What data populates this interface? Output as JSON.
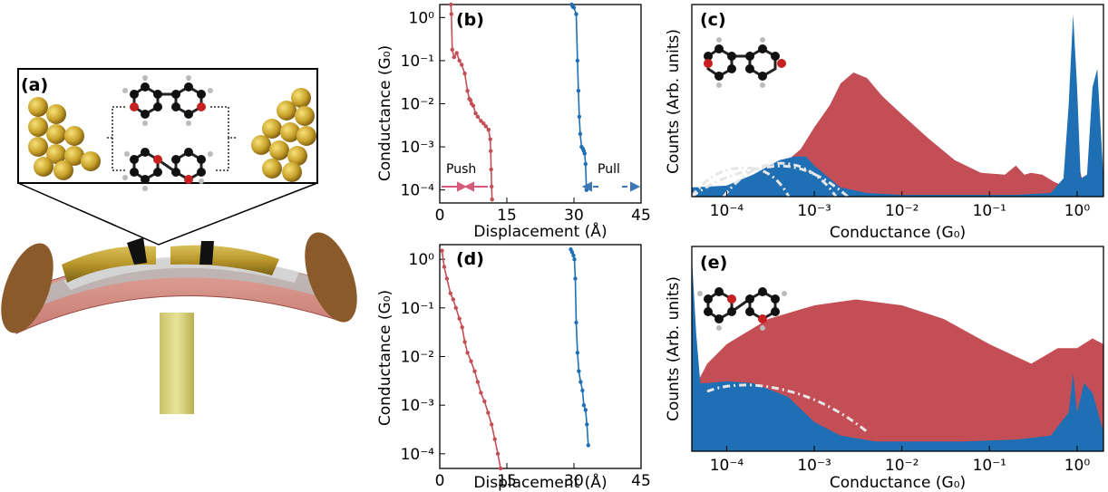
{
  "panels": {
    "a": {
      "label": "(a)"
    },
    "b": {
      "label": "(b)"
    },
    "c": {
      "label": "(c)"
    },
    "d": {
      "label": "(d)"
    },
    "e": {
      "label": "(e)"
    }
  },
  "annotations": {
    "push": "Push",
    "pull": "Pull"
  },
  "colors": {
    "push": "#c44e55",
    "pull": "#1f6fb5",
    "fit": "#e6e6e6"
  },
  "axis_text": {
    "traces_ylabel": "Conductance (G₀)",
    "traces_xlabel": "Displacement (Å)",
    "hist_ylabel": "Counts (Arb. units)",
    "hist_xlabel": "Conductance (G₀)"
  },
  "chart_data": [
    {
      "panel": "b",
      "type": "line",
      "xlabel": "Displacement (Å)",
      "ylabel": "Conductance (G₀)",
      "xlim": [
        0,
        45
      ],
      "ylim": [
        5e-05,
        2
      ],
      "yscale": "log",
      "xticks": [
        "0",
        "15",
        "30",
        "45"
      ],
      "yticks": [
        "10⁰",
        "10⁻¹",
        "10⁻²",
        "10⁻³",
        "10⁻⁴"
      ],
      "series": [
        {
          "name": "Push",
          "color": "#c44e55",
          "x": [
            2.5,
            2.6,
            2.8,
            3.2,
            3.8,
            4.4,
            4.9,
            5.6,
            6.2,
            6.6,
            6.9,
            7.1,
            7.5,
            8.0,
            8.5,
            9.2,
            9.8,
            10.3,
            10.9,
            11.3,
            11.4,
            11.5,
            11.6,
            11.7
          ],
          "y": [
            2,
            1.2,
            0.18,
            0.12,
            0.15,
            0.1,
            0.08,
            0.05,
            0.02,
            0.013,
            0.012,
            0.01,
            0.009,
            0.006,
            0.005,
            0.004,
            0.0035,
            0.003,
            0.0025,
            0.0015,
            0.0008,
            0.0003,
            0.00012,
            6e-05
          ]
        },
        {
          "name": "Pull",
          "color": "#1f6fb5",
          "x": [
            29.5,
            29.7,
            30.0,
            30.5,
            30.8,
            31.0,
            31.2,
            31.4,
            31.7,
            32.0,
            32.2,
            32.4,
            32.6,
            32.8
          ],
          "y": [
            2,
            1.8,
            1.7,
            1.2,
            0.1,
            0.02,
            0.005,
            0.002,
            0.001,
            0.0009,
            0.0008,
            0.0007,
            0.0004,
            0.0001
          ]
        }
      ]
    },
    {
      "panel": "d",
      "type": "line",
      "xlabel": "Displacement (Å)",
      "ylabel": "Conductance (G₀)",
      "xlim": [
        0,
        45
      ],
      "ylim": [
        5e-05,
        2
      ],
      "yscale": "log",
      "xticks": [
        "0",
        "15",
        "30",
        "45"
      ],
      "yticks": [
        "10⁰",
        "10⁻¹",
        "10⁻²",
        "10⁻³",
        "10⁻⁴"
      ],
      "series": [
        {
          "name": "Push",
          "color": "#c44e55",
          "x": [
            0.5,
            1.0,
            1.6,
            2.4,
            3.0,
            3.6,
            4.4,
            5.0,
            5.6,
            6.2,
            7.0,
            7.8,
            8.5,
            9.2,
            10.0,
            10.8,
            11.6,
            12.3,
            13.0,
            13.6
          ],
          "y": [
            1.5,
            0.7,
            0.4,
            0.2,
            0.15,
            0.1,
            0.06,
            0.04,
            0.02,
            0.012,
            0.008,
            0.005,
            0.003,
            0.0018,
            0.0012,
            0.0007,
            0.0004,
            0.0002,
            0.0001,
            5e-05
          ]
        },
        {
          "name": "Pull",
          "color": "#1f6fb5",
          "x": [
            29.3,
            29.6,
            29.9,
            30.1,
            30.3,
            30.5,
            30.8,
            31.1,
            31.5,
            31.9,
            32.2,
            32.6,
            32.9,
            33.2
          ],
          "y": [
            1.6,
            1.4,
            1.2,
            1.0,
            0.4,
            0.05,
            0.012,
            0.005,
            0.003,
            0.002,
            0.001,
            0.0008,
            0.0004,
            0.00015
          ]
        }
      ]
    },
    {
      "panel": "c",
      "type": "area",
      "xlabel": "Conductance (G₀)",
      "ylabel": "Counts (Arb. units)",
      "xscale": "log",
      "xlim": [
        4e-05,
        2
      ],
      "xticks": [
        "10⁻⁴",
        "10⁻³",
        "10⁻²",
        "10⁻¹",
        "10⁰"
      ],
      "series": [
        {
          "name": "Push",
          "color": "#c44e55",
          "x": [
            4e-05,
            0.0001,
            0.0002,
            0.0004,
            0.0007,
            0.001,
            0.0015,
            0.002,
            0.0028,
            0.004,
            0.006,
            0.01,
            0.02,
            0.04,
            0.08,
            0.15,
            0.2,
            0.25,
            0.3,
            0.4,
            0.55,
            0.7,
            0.9,
            1.2,
            1.5,
            2
          ],
          "y": [
            0.04,
            0.06,
            0.1,
            0.16,
            0.26,
            0.38,
            0.5,
            0.62,
            0.68,
            0.65,
            0.55,
            0.45,
            0.32,
            0.2,
            0.13,
            0.12,
            0.17,
            0.12,
            0.13,
            0.12,
            0.08,
            0.06,
            0.3,
            0.05,
            0.15,
            0.05
          ]
        },
        {
          "name": "Pull",
          "color": "#1f6fb5",
          "x": [
            4e-05,
            0.0001,
            0.0002,
            0.0004,
            0.0006,
            0.0008,
            0.001,
            0.0015,
            0.002,
            0.004,
            0.01,
            0.05,
            0.2,
            0.5,
            0.7,
            0.8,
            0.9,
            1.0,
            1.1,
            1.3,
            1.5,
            1.7,
            2
          ],
          "y": [
            0.05,
            0.06,
            0.12,
            0.2,
            0.22,
            0.22,
            0.17,
            0.1,
            0.05,
            0.02,
            0.01,
            0.01,
            0.01,
            0.02,
            0.1,
            0.5,
            1.0,
            0.6,
            0.1,
            0.12,
            0.6,
            0.7,
            0.1
          ]
        }
      ]
    },
    {
      "panel": "e",
      "type": "area",
      "xlabel": "Conductance (G₀)",
      "ylabel": "Counts (Arb. units)",
      "xscale": "log",
      "xlim": [
        4e-05,
        2
      ],
      "xticks": [
        "10⁻⁴",
        "10⁻³",
        "10⁻²",
        "10⁻¹",
        "10⁰"
      ],
      "series": [
        {
          "name": "Push",
          "color": "#c44e55",
          "x": [
            4e-05,
            6e-05,
            0.0001,
            0.0003,
            0.001,
            0.003,
            0.01,
            0.03,
            0.1,
            0.3,
            0.6,
            1.0,
            1.5,
            2
          ],
          "y": [
            0.3,
            0.45,
            0.55,
            0.68,
            0.75,
            0.78,
            0.75,
            0.68,
            0.55,
            0.45,
            0.53,
            0.53,
            0.58,
            0.55
          ]
        },
        {
          "name": "Pull",
          "color": "#1f6fb5",
          "x": [
            4e-05,
            4.5e-05,
            5e-05,
            6e-05,
            0.0001,
            0.0002,
            0.0005,
            0.001,
            0.002,
            0.005,
            0.01,
            0.05,
            0.2,
            0.5,
            0.8,
            0.9,
            1.0,
            1.2,
            1.5,
            2
          ],
          "y": [
            1.0,
            0.6,
            0.35,
            0.35,
            0.36,
            0.35,
            0.28,
            0.15,
            0.08,
            0.05,
            0.05,
            0.05,
            0.06,
            0.08,
            0.2,
            0.4,
            0.2,
            0.35,
            0.3,
            0.1
          ]
        }
      ]
    }
  ]
}
